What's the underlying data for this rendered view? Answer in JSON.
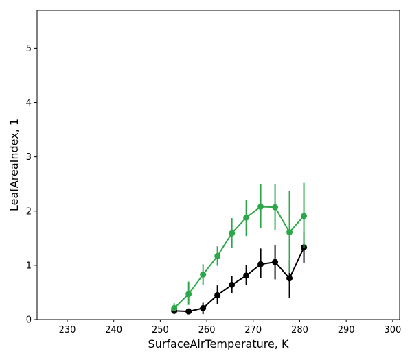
{
  "chart_data": {
    "type": "line",
    "title": "",
    "xlabel": "SurfaceAirTemperature,  K",
    "ylabel": "LeafAreaIndex,  1",
    "xlim": [
      223.5,
      301.5
    ],
    "ylim": [
      0,
      5.7
    ],
    "xticks": [
      230,
      240,
      250,
      260,
      270,
      280,
      290,
      300
    ],
    "yticks": [
      0,
      1,
      2,
      3,
      4,
      5
    ],
    "grid": false,
    "legend": "none",
    "series": [
      {
        "color": "#000000",
        "points": [
          {
            "x": 253,
            "y": 0.16,
            "err_lo": 0.12,
            "err_hi": 0.2
          },
          {
            "x": 256.1,
            "y": 0.15,
            "err_lo": 0.11,
            "err_hi": 0.19
          },
          {
            "x": 259.2,
            "y": 0.21,
            "err_lo": 0.1,
            "err_hi": 0.31
          },
          {
            "x": 262.3,
            "y": 0.45,
            "err_lo": 0.29,
            "err_hi": 0.63
          },
          {
            "x": 265.4,
            "y": 0.64,
            "err_lo": 0.49,
            "err_hi": 0.8
          },
          {
            "x": 268.5,
            "y": 0.81,
            "err_lo": 0.64,
            "err_hi": 1.0
          },
          {
            "x": 271.6,
            "y": 1.02,
            "err_lo": 0.76,
            "err_hi": 1.31
          },
          {
            "x": 274.7,
            "y": 1.06,
            "err_lo": 0.74,
            "err_hi": 1.37
          },
          {
            "x": 277.8,
            "y": 0.76,
            "err_lo": 0.4,
            "err_hi": 1.1
          },
          {
            "x": 280.9,
            "y": 1.33,
            "err_lo": 1.05,
            "err_hi": 1.6
          }
        ]
      },
      {
        "color": "#2ca84a",
        "points": [
          {
            "x": 253,
            "y": 0.21,
            "err_lo": 0.15,
            "err_hi": 0.3
          },
          {
            "x": 256.1,
            "y": 0.47,
            "err_lo": 0.27,
            "err_hi": 0.7
          },
          {
            "x": 259.2,
            "y": 0.83,
            "err_lo": 0.64,
            "err_hi": 1.02
          },
          {
            "x": 262.3,
            "y": 1.17,
            "err_lo": 0.99,
            "err_hi": 1.35
          },
          {
            "x": 265.4,
            "y": 1.59,
            "err_lo": 1.32,
            "err_hi": 1.87
          },
          {
            "x": 268.5,
            "y": 1.88,
            "err_lo": 1.54,
            "err_hi": 2.2
          },
          {
            "x": 271.6,
            "y": 2.08,
            "err_lo": 1.69,
            "err_hi": 2.49
          },
          {
            "x": 274.7,
            "y": 2.07,
            "err_lo": 1.65,
            "err_hi": 2.5
          },
          {
            "x": 277.8,
            "y": 1.61,
            "err_lo": 0.86,
            "err_hi": 2.37
          },
          {
            "x": 280.9,
            "y": 1.91,
            "err_lo": 1.32,
            "err_hi": 2.52
          }
        ]
      }
    ]
  }
}
